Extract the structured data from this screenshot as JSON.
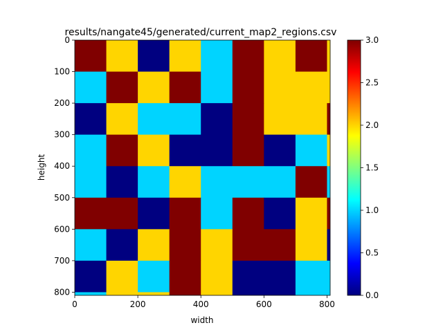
{
  "chart_data": {
    "type": "heatmap",
    "title": "results/nangate45/generated/current_map2_regions.csv",
    "xlabel": "width",
    "ylabel": "height",
    "colormap": "jet",
    "x_extent": [
      0,
      810
    ],
    "y_extent": [
      0,
      810
    ],
    "cell_size": 100,
    "x_ticks": [
      0,
      200,
      400,
      600,
      800
    ],
    "x_tick_labels": [
      "0",
      "200",
      "400",
      "600",
      "800"
    ],
    "y_ticks": [
      0,
      100,
      200,
      300,
      400,
      500,
      600,
      700,
      800
    ],
    "y_tick_labels": [
      "0",
      "100",
      "200",
      "300",
      "400",
      "500",
      "600",
      "700",
      "800"
    ],
    "colorbar": {
      "range": [
        0,
        3
      ],
      "ticks": [
        0,
        0.5,
        1,
        1.5,
        2,
        2.5,
        3
      ],
      "tick_labels": [
        "0.0",
        "0.5",
        "1.0",
        "1.5",
        "2.0",
        "2.5",
        "3.0"
      ]
    },
    "grid": false,
    "values": [
      [
        3,
        2,
        0,
        2,
        1,
        3,
        2,
        3,
        2
      ],
      [
        1,
        3,
        2,
        3,
        1,
        3,
        2,
        2,
        2
      ],
      [
        0,
        2,
        1,
        1,
        0,
        3,
        2,
        2,
        3
      ],
      [
        1,
        3,
        2,
        0,
        0,
        3,
        0,
        1,
        2
      ],
      [
        1,
        0,
        1,
        2,
        1,
        1,
        1,
        3,
        1
      ],
      [
        3,
        3,
        0,
        3,
        1,
        3,
        0,
        2,
        3
      ],
      [
        1,
        0,
        2,
        3,
        2,
        3,
        3,
        2,
        0
      ],
      [
        0,
        2,
        1,
        3,
        2,
        0,
        0,
        1,
        1
      ],
      [
        1,
        2,
        2,
        3,
        2,
        0,
        0,
        1,
        1
      ]
    ]
  }
}
